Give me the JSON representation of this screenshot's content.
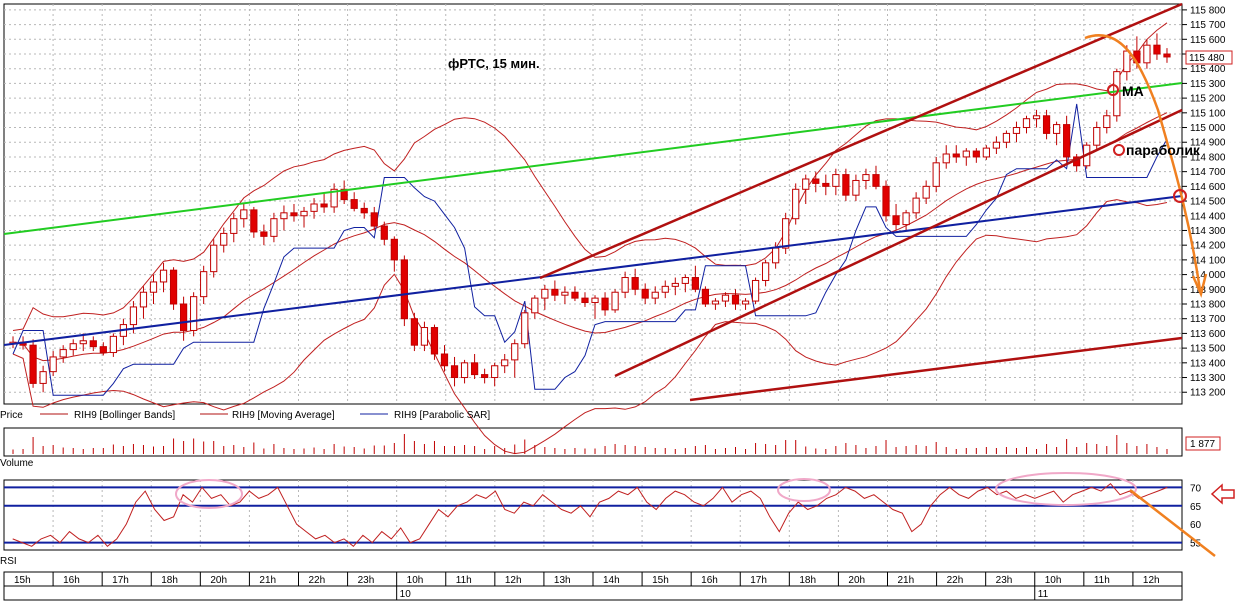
{
  "chart_data": {
    "type": "candlestick",
    "title": "фРТС,  15 мин.",
    "price_axis": {
      "ticks": [
        113200,
        113300,
        113400,
        113500,
        113600,
        113700,
        113800,
        113900,
        114000,
        114100,
        114200,
        114300,
        114400,
        114500,
        114600,
        114700,
        114800,
        114900,
        115000,
        115100,
        115200,
        115300,
        115400,
        115500,
        115600,
        115700,
        115800
      ],
      "tick_labels": [
        "113 200",
        "113 300",
        "113 400",
        "113 500",
        "113 600",
        "113 700",
        "113 800",
        "113 900",
        "114 000",
        "114 100",
        "114 200",
        "114 300",
        "114 400",
        "114 500",
        "114 600",
        "114 700",
        "114 800",
        "114 900",
        "115 000",
        "115 100",
        "115 200",
        "115 300",
        "115 400",
        "115 500",
        "115 600",
        "115 700",
        "115 800"
      ],
      "range": [
        113120,
        115840
      ],
      "last_price_label": "115 480"
    },
    "legend": [
      "Price",
      "RIH9 [Bollinger Bands]",
      "RIH9 [Moving Average]",
      "RIH9 [Parabolic SAR]"
    ],
    "volume": {
      "label": "Volume",
      "value_label": "1 877"
    },
    "rsi": {
      "label": "RSI",
      "tick_labels": [
        "70",
        "65",
        "60",
        "55"
      ],
      "levels": [
        70,
        65,
        55
      ],
      "range": [
        53,
        72
      ],
      "values": [
        56,
        55,
        54,
        56,
        57,
        55,
        58,
        56,
        55,
        57,
        54,
        56,
        60,
        66,
        69,
        64,
        61,
        62,
        68,
        66,
        70,
        67,
        68,
        65,
        66,
        69,
        67,
        68,
        70,
        65,
        60,
        58,
        56,
        57,
        55,
        56,
        54,
        57,
        55,
        58,
        56,
        59,
        55,
        56,
        60,
        64,
        62,
        65,
        66,
        68,
        67,
        69,
        64,
        63,
        66,
        65,
        68,
        66,
        64,
        63,
        65,
        62,
        66,
        67,
        69,
        68,
        70,
        66,
        64,
        67,
        69,
        68,
        66,
        65,
        67,
        70,
        66,
        68,
        69,
        67,
        62,
        58,
        63,
        66,
        64,
        65,
        67,
        68,
        70,
        69,
        67,
        68,
        66,
        64,
        63,
        58,
        60,
        65,
        68,
        70,
        68,
        67,
        69,
        70,
        68,
        69,
        67,
        68,
        67,
        68,
        69,
        66,
        68,
        69,
        70,
        69,
        71,
        68,
        69,
        67,
        68,
        69,
        70
      ]
    },
    "time_axis": {
      "hour_labels": [
        "15h",
        "16h",
        "17h",
        "18h",
        "20h",
        "21h",
        "22h",
        "23h",
        "10h",
        "11h",
        "12h",
        "13h",
        "14h",
        "15h",
        "16h",
        "17h",
        "18h",
        "20h",
        "21h",
        "22h",
        "23h",
        "10h",
        "11h",
        "12h"
      ],
      "day_labels": [
        "10",
        "11"
      ]
    },
    "candles": [
      [
        113530,
        113580,
        113500,
        113540
      ],
      [
        113540,
        113580,
        113490,
        113520
      ],
      [
        113520,
        113560,
        113230,
        113260
      ],
      [
        113260,
        113380,
        113200,
        113340
      ],
      [
        113340,
        113480,
        113310,
        113440
      ],
      [
        113440,
        113520,
        113400,
        113490
      ],
      [
        113490,
        113560,
        113450,
        113530
      ],
      [
        113530,
        113600,
        113480,
        113550
      ],
      [
        113550,
        113580,
        113480,
        113510
      ],
      [
        113510,
        113540,
        113450,
        113470
      ],
      [
        113470,
        113600,
        113440,
        113580
      ],
      [
        113580,
        113700,
        113520,
        113660
      ],
      [
        113660,
        113820,
        113600,
        113780
      ],
      [
        113780,
        113920,
        113700,
        113880
      ],
      [
        113880,
        114000,
        113800,
        113950
      ],
      [
        113950,
        114080,
        113880,
        114030
      ],
      [
        114030,
        114050,
        113760,
        113800
      ],
      [
        113800,
        113850,
        113550,
        113620
      ],
      [
        113620,
        113880,
        113580,
        113850
      ],
      [
        113850,
        114060,
        113800,
        114020
      ],
      [
        114020,
        114240,
        113980,
        114200
      ],
      [
        114200,
        114320,
        114150,
        114280
      ],
      [
        114280,
        114420,
        114220,
        114380
      ],
      [
        114380,
        114480,
        114320,
        114440
      ],
      [
        114440,
        114460,
        114250,
        114290
      ],
      [
        114290,
        114340,
        114200,
        114260
      ],
      [
        114260,
        114420,
        114220,
        114380
      ],
      [
        114380,
        114470,
        114300,
        114420
      ],
      [
        114420,
        114480,
        114360,
        114400
      ],
      [
        114400,
        114460,
        114320,
        114430
      ],
      [
        114430,
        114520,
        114380,
        114480
      ],
      [
        114480,
        114560,
        114420,
        114460
      ],
      [
        114460,
        114620,
        114420,
        114580
      ],
      [
        114580,
        114640,
        114480,
        114510
      ],
      [
        114510,
        114560,
        114430,
        114450
      ],
      [
        114450,
        114490,
        114380,
        114420
      ],
      [
        114420,
        114460,
        114300,
        114330
      ],
      [
        114330,
        114360,
        114200,
        114240
      ],
      [
        114240,
        114260,
        114020,
        114100
      ],
      [
        114100,
        114130,
        113650,
        113700
      ],
      [
        113700,
        113740,
        113480,
        113520
      ],
      [
        113520,
        113680,
        113480,
        113640
      ],
      [
        113640,
        113660,
        113420,
        113460
      ],
      [
        113460,
        113520,
        113340,
        113380
      ],
      [
        113380,
        113440,
        113240,
        113300
      ],
      [
        113300,
        113420,
        113260,
        113400
      ],
      [
        113400,
        113460,
        113290,
        113320
      ],
      [
        113320,
        113360,
        113260,
        113300
      ],
      [
        113300,
        113400,
        113240,
        113380
      ],
      [
        113380,
        113460,
        113330,
        113420
      ],
      [
        113420,
        113560,
        113300,
        113530
      ],
      [
        113530,
        113760,
        113500,
        113740
      ],
      [
        113740,
        113860,
        113700,
        113840
      ],
      [
        113840,
        113930,
        113760,
        113900
      ],
      [
        113900,
        113960,
        113820,
        113860
      ],
      [
        113860,
        113920,
        113800,
        113880
      ],
      [
        113880,
        113920,
        113820,
        113840
      ],
      [
        113840,
        113880,
        113780,
        113810
      ],
      [
        113810,
        113860,
        113700,
        113840
      ],
      [
        113840,
        113880,
        113720,
        113760
      ],
      [
        113760,
        113900,
        113740,
        113880
      ],
      [
        113880,
        114020,
        113840,
        113980
      ],
      [
        113980,
        114040,
        113860,
        113900
      ],
      [
        113900,
        113940,
        113800,
        113840
      ],
      [
        113840,
        113920,
        113800,
        113880
      ],
      [
        113880,
        113960,
        113840,
        113920
      ],
      [
        113920,
        113980,
        113860,
        113940
      ],
      [
        113940,
        114000,
        113880,
        113980
      ],
      [
        113980,
        114060,
        113880,
        113900
      ],
      [
        113900,
        113920,
        113780,
        113800
      ],
      [
        113800,
        113840,
        113760,
        113820
      ],
      [
        113820,
        113880,
        113780,
        113860
      ],
      [
        113860,
        113900,
        113760,
        113800
      ],
      [
        113800,
        113840,
        113760,
        113820
      ],
      [
        113820,
        113980,
        113800,
        113960
      ],
      [
        113960,
        114100,
        113920,
        114080
      ],
      [
        114080,
        114220,
        114040,
        114180
      ],
      [
        114180,
        114420,
        114140,
        114380
      ],
      [
        114380,
        114620,
        114340,
        114580
      ],
      [
        114580,
        114680,
        114480,
        114650
      ],
      [
        114650,
        114700,
        114560,
        114620
      ],
      [
        114620,
        114680,
        114540,
        114600
      ],
      [
        114600,
        114720,
        114540,
        114680
      ],
      [
        114680,
        114720,
        114500,
        114540
      ],
      [
        114540,
        114680,
        114500,
        114640
      ],
      [
        114640,
        114720,
        114580,
        114680
      ],
      [
        114680,
        114740,
        114580,
        114600
      ],
      [
        114600,
        114640,
        114360,
        114400
      ],
      [
        114400,
        114480,
        114300,
        114340
      ],
      [
        114340,
        114440,
        114300,
        114420
      ],
      [
        114420,
        114560,
        114380,
        114520
      ],
      [
        114520,
        114640,
        114480,
        114600
      ],
      [
        114600,
        114800,
        114560,
        114760
      ],
      [
        114760,
        114880,
        114720,
        114820
      ],
      [
        114820,
        114880,
        114760,
        114800
      ],
      [
        114800,
        114860,
        114740,
        114840
      ],
      [
        114840,
        114860,
        114760,
        114800
      ],
      [
        114800,
        114880,
        114780,
        114860
      ],
      [
        114860,
        114940,
        114820,
        114900
      ],
      [
        114900,
        114980,
        114860,
        114960
      ],
      [
        114960,
        115040,
        114900,
        115000
      ],
      [
        115000,
        115080,
        114960,
        115060
      ],
      [
        115060,
        115120,
        115000,
        115080
      ],
      [
        115080,
        115120,
        114920,
        114960
      ],
      [
        114960,
        115040,
        114880,
        115020
      ],
      [
        115020,
        115080,
        114760,
        114800
      ],
      [
        114800,
        114820,
        114700,
        114740
      ],
      [
        114740,
        114900,
        114720,
        114880
      ],
      [
        114880,
        115040,
        114840,
        115000
      ],
      [
        115000,
        115120,
        114960,
        115080
      ],
      [
        115080,
        115400,
        115040,
        115380
      ],
      [
        115380,
        115560,
        115320,
        115520
      ],
      [
        115520,
        115620,
        115400,
        115440
      ],
      [
        115440,
        115600,
        115400,
        115560
      ],
      [
        115560,
        115640,
        115460,
        115500
      ],
      [
        115500,
        115540,
        115440,
        115480
      ]
    ]
  }
}
